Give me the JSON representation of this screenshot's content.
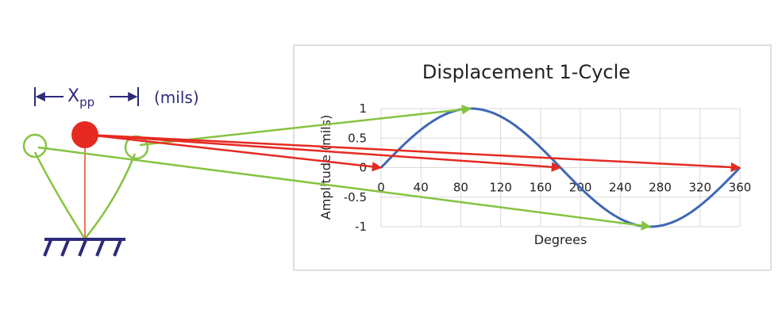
{
  "colors": {
    "navy": "#2e2a7a",
    "green": "#86c340",
    "red": "#e62a22",
    "blue": "#3f67b4",
    "grid": "#d9d9d9",
    "panel_border": "#bfbfbf"
  },
  "annotation": {
    "xpp_main": "X",
    "xpp_sub": "pp",
    "units": "(mils)"
  },
  "chart_data": {
    "type": "line",
    "title": "Displacement 1-Cycle",
    "xlabel": "Degrees",
    "ylabel": "Amplitude (mils)",
    "xlim": [
      0,
      360
    ],
    "ylim": [
      -1,
      1
    ],
    "x_ticks": [
      "0",
      "40",
      "80",
      "120",
      "160",
      "200",
      "240",
      "280",
      "320",
      "360"
    ],
    "y_ticks": [
      "1",
      "0.5",
      "0",
      "-0.5",
      "-1"
    ],
    "grid": true,
    "series": [
      {
        "function": "sin",
        "x": [
          0,
          30,
          60,
          90,
          120,
          150,
          180,
          210,
          240,
          270,
          300,
          330,
          360
        ],
        "values": [
          0,
          0.5,
          0.866,
          1,
          0.866,
          0.5,
          0,
          -0.5,
          -0.866,
          -1,
          -0.866,
          -0.5,
          0
        ]
      }
    ],
    "arrows": {
      "green": [
        {
          "to_deg": 90,
          "to_amp": 1
        },
        {
          "to_deg": 270,
          "to_amp": -1
        }
      ],
      "red": [
        {
          "to_deg": 0,
          "to_amp": 0
        },
        {
          "to_deg": 180,
          "to_amp": 0
        },
        {
          "to_deg": 360,
          "to_amp": 0
        }
      ]
    }
  }
}
